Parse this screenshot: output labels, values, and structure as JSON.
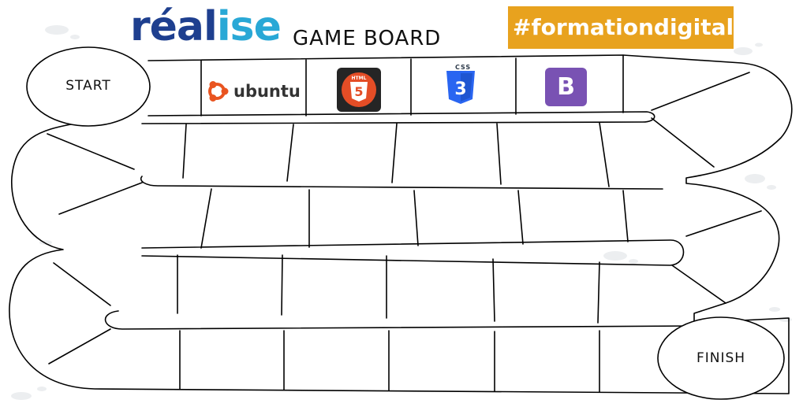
{
  "header": {
    "brand_part1": "réal",
    "brand_part2": "ise",
    "title": "GAME BOARD",
    "hashtag": "#formationdigitale"
  },
  "board": {
    "start_label": "START",
    "finish_label": "FINISH"
  },
  "logos": {
    "ubuntu": "ubuntu",
    "html5_caption": "HTML",
    "html5_number": "5",
    "css3_caption": "CSS",
    "css3_number": "3",
    "bootstrap_letter": "B"
  },
  "colors": {
    "brand_dark": "#1e3f8f",
    "brand_light": "#29a8d6",
    "hashtag_bg": "#e8a21e",
    "html5": "#e44d26",
    "css3": "#2965f1",
    "bootstrap": "#7952b3",
    "ubuntu": "#e95420",
    "blob": "#eceef0"
  }
}
